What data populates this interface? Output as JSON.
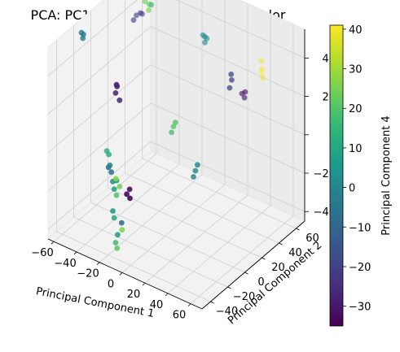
{
  "chart_data": {
    "type": "scatter",
    "title": "PCA: PC1 vs PC2 vs PC3 with PC4 Color",
    "xlabel": "Principal Component 1",
    "ylabel": "Principal Component 2",
    "zlabel": "",
    "colorbar_label": "Principal Component 4",
    "colormap": "viridis",
    "colormap_stops": [
      "#440154",
      "#482878",
      "#3e4a89",
      "#31688e",
      "#26828e",
      "#1f9e89",
      "#35b779",
      "#6ece58",
      "#b5de2b",
      "#fde725"
    ],
    "xlim": [
      -65,
      70
    ],
    "ylim": [
      -50,
      70
    ],
    "zlim": [
      -45,
      55
    ],
    "clim": [
      -35,
      41
    ],
    "xticks": [
      "−60",
      "−40",
      "−20",
      "0",
      "20",
      "40",
      "60"
    ],
    "yticks": [
      "−40",
      "−20",
      "0",
      "20",
      "40",
      "60"
    ],
    "zticks": [
      "−40",
      "−20",
      "0",
      "20",
      "40"
    ],
    "colorbar_ticks": [
      "−30",
      "−20",
      "−10",
      "0",
      "10",
      "20",
      "30",
      "40"
    ],
    "grid": true,
    "points": [
      {
        "x": -55,
        "y": 40,
        "z": 40,
        "c": -20
      },
      {
        "x": -53,
        "y": 42,
        "z": 41,
        "c": -22
      },
      {
        "x": -50,
        "y": 40,
        "z": 42,
        "c": -19
      },
      {
        "x": -56,
        "y": 38,
        "z": 38,
        "c": -21
      },
      {
        "x": -62,
        "y": -15,
        "z": 50,
        "c": -3
      },
      {
        "x": -61,
        "y": -14,
        "z": 49,
        "c": -4
      },
      {
        "x": -60,
        "y": -16,
        "z": 48,
        "c": -2
      },
      {
        "x": -40,
        "y": 30,
        "z": 55,
        "c": 24
      },
      {
        "x": -37,
        "y": 31,
        "z": 54,
        "c": 22
      },
      {
        "x": -33,
        "y": 28,
        "z": 56,
        "c": 18
      },
      {
        "x": -36,
        "y": 29,
        "z": 52,
        "c": 25
      },
      {
        "x": 5,
        "y": 40,
        "z": 45,
        "c": 2
      },
      {
        "x": 6,
        "y": 41,
        "z": 44,
        "c": 3
      },
      {
        "x": 4,
        "y": 39,
        "z": 46,
        "c": 1
      },
      {
        "x": 5,
        "y": 40,
        "z": 42,
        "c": 2
      },
      {
        "x": 40,
        "y": 60,
        "z": 30,
        "c": 40
      },
      {
        "x": 40,
        "y": 60,
        "z": 28,
        "c": 41
      },
      {
        "x": 38,
        "y": 62,
        "z": 33,
        "c": 39
      },
      {
        "x": 40,
        "y": 61,
        "z": 25,
        "c": 38
      },
      {
        "x": 45,
        "y": 30,
        "z": 30,
        "c": -30
      },
      {
        "x": 47,
        "y": 31,
        "z": 31,
        "c": -31
      },
      {
        "x": 48,
        "y": 29,
        "z": 29,
        "c": -29
      },
      {
        "x": 58,
        "y": 0,
        "z": 55,
        "c": -18
      },
      {
        "x": 57,
        "y": 2,
        "z": 51,
        "c": -19
      },
      {
        "x": 56,
        "y": 1,
        "z": 47,
        "c": -17
      },
      {
        "x": -20,
        "y": -30,
        "z": 40,
        "c": -28
      },
      {
        "x": -21,
        "y": -28,
        "z": 38,
        "c": -29
      },
      {
        "x": -20,
        "y": -31,
        "z": 36,
        "c": -27
      },
      {
        "x": -18,
        "y": -29,
        "z": 32,
        "c": -26
      },
      {
        "x": -30,
        "y": -28,
        "z": 2,
        "c": 14
      },
      {
        "x": -29,
        "y": -27,
        "z": 0,
        "c": 13
      },
      {
        "x": -27,
        "y": -30,
        "z": -5,
        "c": -8
      },
      {
        "x": -26,
        "y": -28,
        "z": -8,
        "c": -6
      },
      {
        "x": -25,
        "y": -31,
        "z": -3,
        "c": 0
      },
      {
        "x": -24,
        "y": -29,
        "z": -12,
        "c": 4
      },
      {
        "x": -22,
        "y": -30,
        "z": -15,
        "c": 9
      },
      {
        "x": -23,
        "y": -26,
        "z": -20,
        "c": 20
      },
      {
        "x": -20,
        "y": -30,
        "z": -10,
        "c": 3
      },
      {
        "x": -19,
        "y": -32,
        "z": -8,
        "c": 28
      },
      {
        "x": -18,
        "y": -29,
        "z": -13,
        "c": 25
      },
      {
        "x": -21,
        "y": -33,
        "z": -25,
        "c": 6
      },
      {
        "x": -22,
        "y": -30,
        "z": -30,
        "c": 12
      },
      {
        "x": -17,
        "y": -28,
        "z": -32,
        "c": -8
      },
      {
        "x": -16,
        "y": -29,
        "z": -35,
        "c": 26
      },
      {
        "x": -20,
        "y": -31,
        "z": -42,
        "c": 18
      },
      {
        "x": -18,
        "y": -32,
        "z": -44,
        "c": 22
      },
      {
        "x": -19,
        "y": -30,
        "z": -38,
        "c": 8
      },
      {
        "x": -5,
        "y": -38,
        "z": -10,
        "c": -33
      },
      {
        "x": -4,
        "y": -36,
        "z": -8,
        "c": -32
      },
      {
        "x": -3,
        "y": -37,
        "z": -12,
        "c": -34
      },
      {
        "x": 15,
        "y": -10,
        "z": 20,
        "c": 21
      },
      {
        "x": 16,
        "y": -9,
        "z": 22,
        "c": 20
      },
      {
        "x": 14,
        "y": -11,
        "z": 17,
        "c": 19
      },
      {
        "x": 38,
        "y": -15,
        "z": 5,
        "c": 0
      },
      {
        "x": 39,
        "y": -14,
        "z": 8,
        "c": 1
      },
      {
        "x": 37,
        "y": -16,
        "z": 2,
        "c": -1
      }
    ]
  }
}
